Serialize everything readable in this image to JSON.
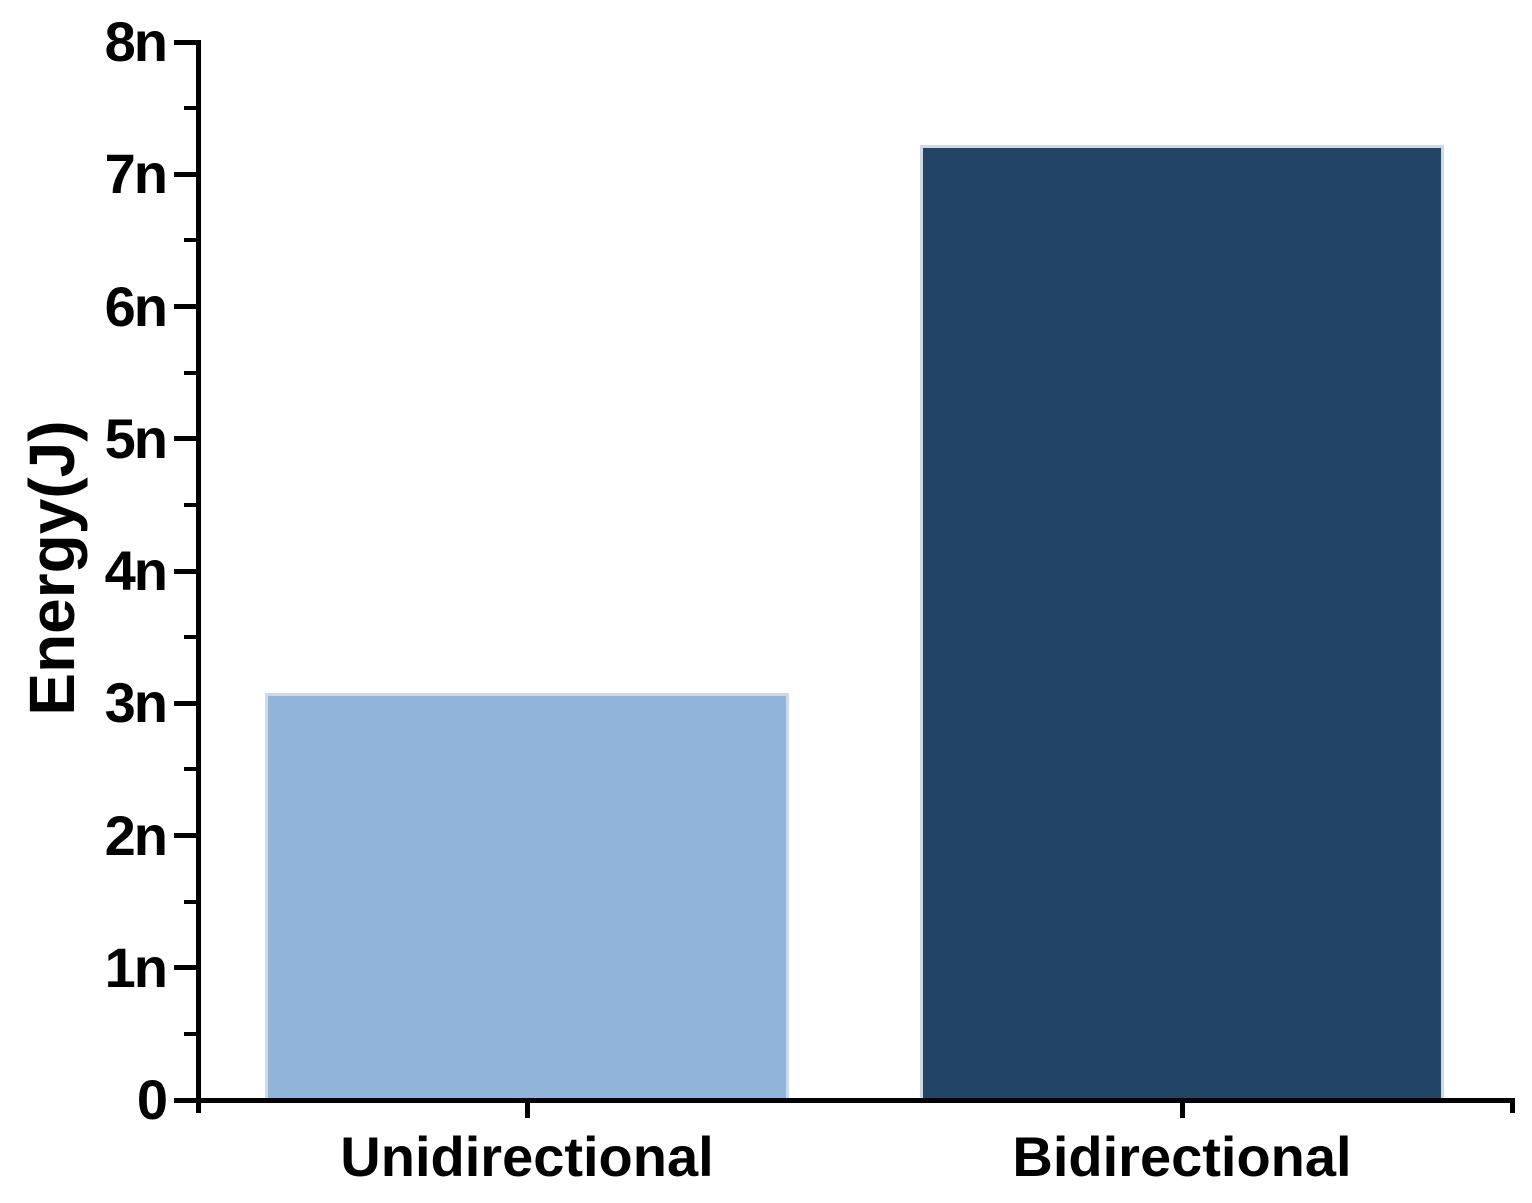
{
  "figure": {
    "background_color": "#FFFFFF",
    "text_color": "#000000",
    "axis_color": "#000000"
  },
  "chart_data": {
    "type": "bar",
    "title": "",
    "categories": [
      "Unidirectional",
      "Bidirectional"
    ],
    "values_n": [
      3.08,
      7.22
    ],
    "unit_suffix": "n",
    "xlabel": "",
    "ylabel": "Energy(J)",
    "ylim_n": [
      0,
      8
    ],
    "ytick_labels": [
      "0",
      "1n",
      "2n",
      "3n",
      "4n",
      "5n",
      "6n",
      "7n",
      "8n"
    ],
    "minor_ticks": "one between each major tick",
    "grid": false,
    "legend": "none",
    "bar_colors": [
      "#90B4DA",
      "#224565"
    ],
    "bar_border_color": "#CDD9E8"
  }
}
